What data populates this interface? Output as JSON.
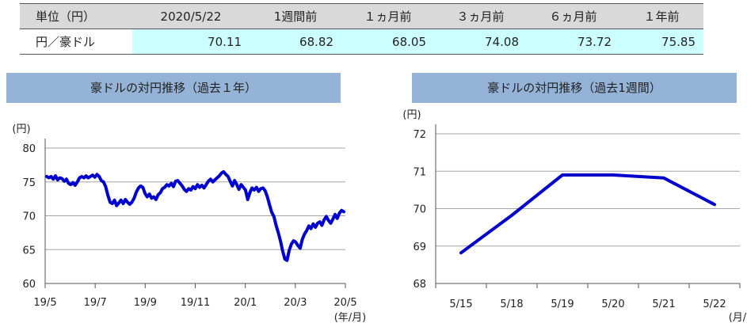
{
  "table": {
    "header": [
      "単位（円）",
      "2020/5/22",
      "1週間前",
      "１ヵ月前",
      "３ヵ月前",
      "６ヵ月前",
      "１年前"
    ],
    "row_label": "円／豪ドル",
    "values": [
      "70.11",
      "68.82",
      "68.05",
      "74.08",
      "73.72",
      "75.85"
    ]
  },
  "chart_data": [
    {
      "type": "line",
      "title": "豪ドルの対円推移（過去１年）",
      "ylabel": "(円)",
      "xlabel": "(年/月)",
      "ylim": [
        60,
        80
      ],
      "yticks": [
        60,
        65,
        70,
        75,
        80
      ],
      "xticks": [
        "19/5",
        "19/7",
        "19/9",
        "19/11",
        "20/1",
        "20/3",
        "20/5"
      ],
      "grid": true,
      "series": [
        {
          "values": [
            75.8,
            75.6,
            75.8,
            75.4,
            75.9,
            75.3,
            75.6,
            75.5,
            75.1,
            75.4,
            74.8,
            74.6,
            74.9,
            74.5,
            75.0,
            75.6,
            75.8,
            75.6,
            75.9,
            75.6,
            75.8,
            76.0,
            75.7,
            76.1,
            75.8,
            75.2,
            75.0,
            74.3,
            73.0,
            72.0,
            71.8,
            72.3,
            71.5,
            71.9,
            72.3,
            71.8,
            72.4,
            72.0,
            71.7,
            72.0,
            72.6,
            73.5,
            74.1,
            74.4,
            74.2,
            73.3,
            72.8,
            73.2,
            72.6,
            72.8,
            72.4,
            73.1,
            73.4,
            74.0,
            74.2,
            74.6,
            74.4,
            74.8,
            74.3,
            75.1,
            75.2,
            74.8,
            74.4,
            73.9,
            73.6,
            74.0,
            73.8,
            74.3,
            74.0,
            74.6,
            74.2,
            74.5,
            74.1,
            74.6,
            75.1,
            75.4,
            75.0,
            75.3,
            75.6,
            75.9,
            76.3,
            76.5,
            76.1,
            75.8,
            75.1,
            74.4,
            75.2,
            74.6,
            73.9,
            74.6,
            74.2,
            73.8,
            72.4,
            73.4,
            74.1,
            73.8,
            74.2,
            73.6,
            74.0,
            74.1,
            73.7,
            72.8,
            71.6,
            70.5,
            69.9,
            68.6,
            67.5,
            66.3,
            64.8,
            63.6,
            63.4,
            64.9,
            65.8,
            66.3,
            66.1,
            65.6,
            65.2,
            66.5,
            67.3,
            67.8,
            68.5,
            68.1,
            68.8,
            68.3,
            68.9,
            69.1,
            68.6,
            69.4,
            69.9,
            69.3,
            68.9,
            69.5,
            70.2,
            69.6,
            70.4,
            70.8,
            70.6
          ]
        }
      ]
    },
    {
      "type": "line",
      "title": "豪ドルの対円推移（過去1週間）",
      "ylabel": "(円)",
      "xlabel": "(月/日)",
      "ylim": [
        68,
        72
      ],
      "yticks": [
        68,
        69,
        70,
        71,
        72
      ],
      "categories": [
        "5/15",
        "5/18",
        "5/19",
        "5/20",
        "5/21",
        "5/22"
      ],
      "grid": true,
      "series": [
        {
          "values": [
            68.82,
            69.82,
            70.9,
            70.9,
            70.82,
            70.11
          ]
        }
      ]
    }
  ]
}
